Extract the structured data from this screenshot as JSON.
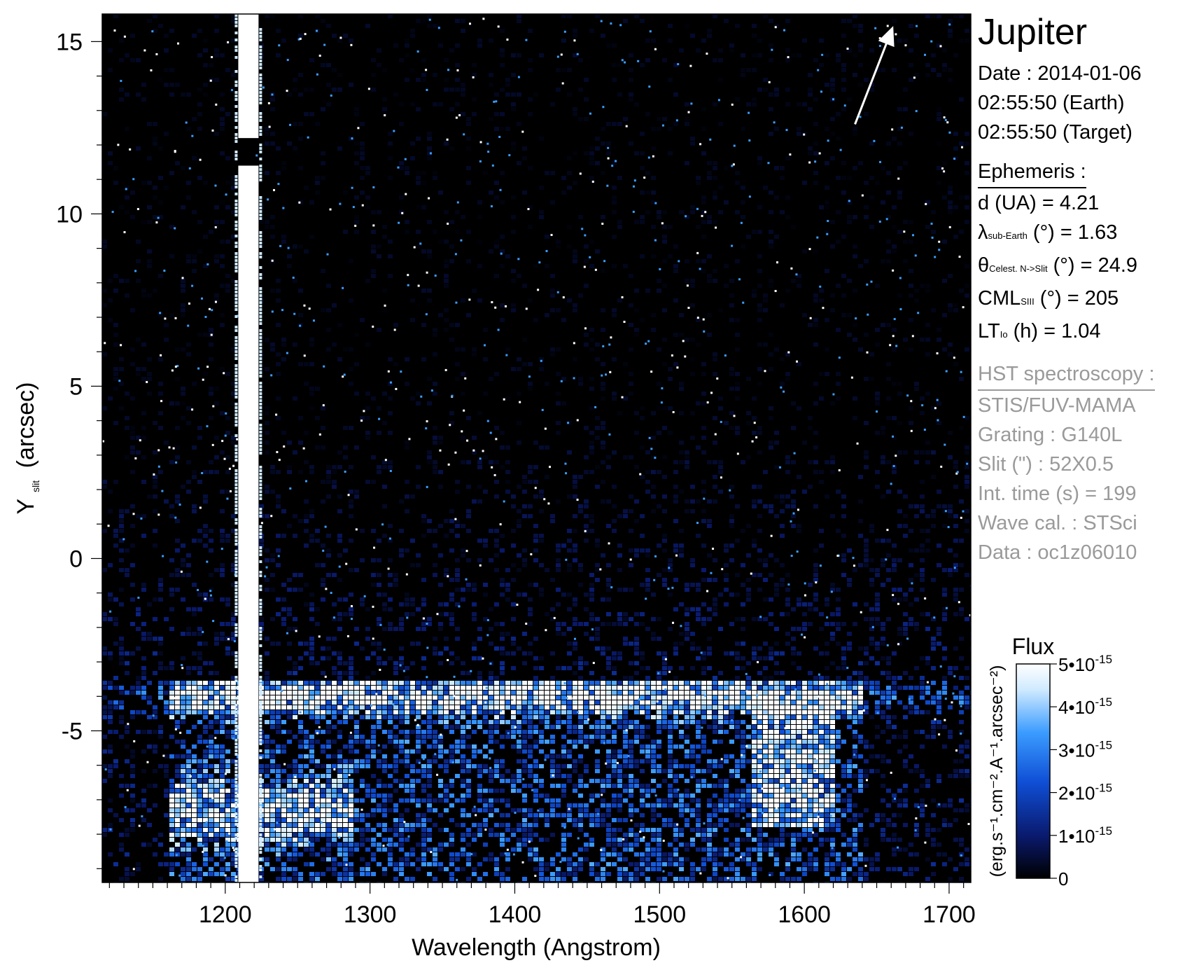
{
  "chart_data": {
    "type": "heatmap",
    "title": "Jupiter",
    "xlabel": "Wavelength (Angstrom)",
    "ylabel_main": "Y",
    "ylabel_sub": "slit",
    "ylabel_unit": "(arcsec)",
    "xlim": [
      1115,
      1715
    ],
    "ylim": [
      -9.4,
      15.8
    ],
    "x_ticks": [
      1200,
      1300,
      1400,
      1500,
      1600,
      1700
    ],
    "x_tick_labels": [
      "1200",
      "1300",
      "1400",
      "1500",
      "1600",
      "1700"
    ],
    "y_ticks": [
      15,
      10,
      5,
      0,
      -5
    ],
    "y_tick_labels": [
      "15",
      "10",
      "5",
      "0",
      "-5"
    ],
    "colormap": [
      "#000000",
      "#0a1a6e",
      "#0f4fd6",
      "#3b9cff",
      "#cfeaff",
      "#ffffff"
    ],
    "background_color": "#000000",
    "features": {
      "lyman_alpha_column": {
        "x": 1216,
        "half_width": 7,
        "slit_gap_y": [
          11.4,
          12.2
        ]
      },
      "disk_edge_band": {
        "x": [
          1160,
          1640
        ],
        "y": -4.0
      },
      "bright_lower_band": {
        "x": [
          1160,
          1290
        ],
        "y": -7.3
      },
      "bright_lobe_right": {
        "x": [
          1565,
          1620
        ],
        "y": [
          -7.3,
          -4.0
        ]
      },
      "disk_region_y": [
        -9.4,
        -3.5
      ]
    },
    "direction_arrow": {
      "from": [
        1635,
        12.6
      ],
      "to": [
        1660,
        15.3
      ]
    },
    "colorbar": {
      "title": "Flux",
      "unit_label": "(erg.s⁻¹.cm⁻².A⁻¹.arcsec⁻²)",
      "range": [
        0,
        5e-15
      ],
      "tick_values": [
        0,
        1e-15,
        2e-15,
        3e-15,
        4e-15,
        5e-15
      ],
      "tick_labels": [
        "0",
        "1•10",
        "2•10",
        "3•10",
        "4•10",
        "5•10"
      ],
      "tick_exponent": "-15"
    }
  },
  "info": {
    "title": "Jupiter",
    "date_line": "Date : 2014-01-06",
    "time_earth": "02:55:50 (Earth)",
    "time_target": "02:55:50 (Target)",
    "ephemeris_header": "Ephemeris :",
    "d_ua": "d (UA)     = 4.21",
    "lambda_main": "λ",
    "lambda_sub": "sub-Earth",
    "lambda_value": " (°)  = 1.63",
    "theta_main": "θ",
    "theta_sub": "Celest. N->Slit",
    "theta_value": " (°) = 24.9",
    "cml_main": "CML",
    "cml_sub": "SIII",
    "cml_value": " (°) = 205",
    "lt_main": "LT",
    "lt_sub": "Io",
    "lt_value": " (h) = 1.04",
    "hst_header": "HST spectroscopy :",
    "instrument": "STIS/FUV-MAMA",
    "grating": "Grating : G140L",
    "slit": "Slit (\") : 52X0.5",
    "int_time": "Int. time (s) = 199",
    "wave_cal": "Wave cal. : STSci",
    "data_id": "Data : oc1z06010"
  }
}
